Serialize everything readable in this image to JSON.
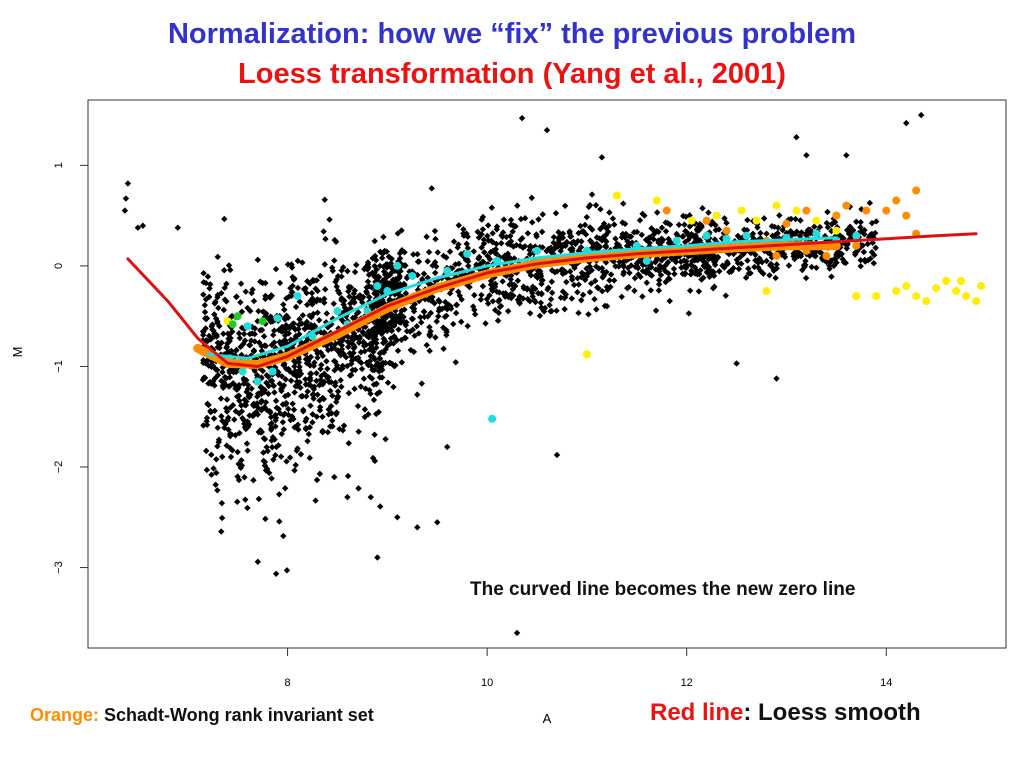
{
  "slide": {
    "title_line1": "Normalization: how we “fix” the previous   problem",
    "title_line2": "Loess transformation (Yang et al., 2001)",
    "annotation": "The curved line becomes the new zero line",
    "legend_orange_key": "Orange:",
    "legend_orange_text": " Schadt-Wong rank invariant set",
    "legend_red_key": "Red line",
    "legend_red_text": ": Loess smooth"
  },
  "colors": {
    "title1": "#3333cc",
    "title2": "#ee1111",
    "points": "#000000",
    "orange": "#ff8c00",
    "red": "#dd1111",
    "cyan": "#22dddd",
    "yellow": "#ffee00",
    "green": "#22cc22"
  },
  "chart_data": {
    "type": "scatter",
    "xlabel": "A",
    "ylabel": "M",
    "xlim": [
      6.0,
      15.2
    ],
    "ylim": [
      -3.8,
      1.65
    ],
    "xticks": [
      8,
      10,
      12,
      14
    ],
    "yticks": [
      -3,
      -2,
      -1,
      0,
      1
    ],
    "grid": false,
    "loess_curve": [
      [
        6.4,
        0.07
      ],
      [
        6.8,
        -0.35
      ],
      [
        7.1,
        -0.72
      ],
      [
        7.4,
        -0.97
      ],
      [
        7.7,
        -1.0
      ],
      [
        8.0,
        -0.9
      ],
      [
        8.5,
        -0.65
      ],
      [
        9.0,
        -0.4
      ],
      [
        9.5,
        -0.22
      ],
      [
        10.0,
        -0.07
      ],
      [
        10.5,
        0.02
      ],
      [
        11.0,
        0.08
      ],
      [
        11.5,
        0.12
      ],
      [
        12.0,
        0.15
      ],
      [
        12.5,
        0.18
      ],
      [
        13.0,
        0.21
      ],
      [
        13.5,
        0.24
      ],
      [
        14.0,
        0.27
      ],
      [
        14.5,
        0.3
      ],
      [
        14.9,
        0.32
      ]
    ],
    "orange_curve": [
      [
        7.1,
        -0.82
      ],
      [
        7.4,
        -0.97
      ],
      [
        7.7,
        -0.98
      ],
      [
        8.0,
        -0.9
      ],
      [
        8.5,
        -0.68
      ],
      [
        9.0,
        -0.42
      ],
      [
        9.5,
        -0.22
      ],
      [
        10.0,
        -0.08
      ],
      [
        10.5,
        0.02
      ],
      [
        11.0,
        0.08
      ],
      [
        11.5,
        0.12
      ],
      [
        12.0,
        0.15
      ],
      [
        12.5,
        0.18
      ],
      [
        13.0,
        0.2
      ],
      [
        13.5,
        0.2
      ]
    ],
    "cyan_curve": [
      [
        7.2,
        -0.88
      ],
      [
        7.6,
        -0.92
      ],
      [
        8.0,
        -0.8
      ],
      [
        8.5,
        -0.52
      ],
      [
        9.0,
        -0.28
      ],
      [
        9.5,
        -0.12
      ],
      [
        10.0,
        0.0
      ],
      [
        10.5,
        0.08
      ],
      [
        11.0,
        0.13
      ],
      [
        11.5,
        0.17
      ],
      [
        12.0,
        0.2
      ],
      [
        12.5,
        0.24
      ],
      [
        13.0,
        0.26
      ],
      [
        13.5,
        0.28
      ]
    ],
    "outliers": [
      [
        6.4,
        0.82
      ],
      [
        6.38,
        0.67
      ],
      [
        6.37,
        0.55
      ],
      [
        6.5,
        0.38
      ],
      [
        6.55,
        0.4
      ],
      [
        6.9,
        0.38
      ],
      [
        10.35,
        1.47
      ],
      [
        10.6,
        1.35
      ],
      [
        11.15,
        1.08
      ],
      [
        13.1,
        1.28
      ],
      [
        13.6,
        1.1
      ],
      [
        14.2,
        1.42
      ],
      [
        14.35,
        1.5
      ],
      [
        13.2,
        1.1
      ],
      [
        9.3,
        -1.28
      ],
      [
        10.7,
        -1.88
      ],
      [
        10.3,
        -3.65
      ],
      [
        12.5,
        -0.97
      ],
      [
        12.9,
        -1.12
      ],
      [
        8.9,
        -2.9
      ],
      [
        8.6,
        -2.3
      ],
      [
        9.1,
        -2.5
      ],
      [
        9.5,
        -2.55
      ],
      [
        9.3,
        -2.6
      ],
      [
        9.6,
        -1.8
      ]
    ],
    "cyan_points": [
      [
        10.05,
        -1.52
      ],
      [
        7.42,
        -0.92
      ],
      [
        7.55,
        -1.05
      ],
      [
        7.7,
        -1.15
      ],
      [
        7.6,
        -0.6
      ],
      [
        7.9,
        -0.52
      ],
      [
        8.25,
        -0.7
      ],
      [
        8.5,
        -0.45
      ],
      [
        8.6,
        -0.58
      ],
      [
        8.9,
        -0.2
      ],
      [
        9.1,
        0.0
      ],
      [
        9.25,
        -0.1
      ],
      [
        9.6,
        -0.05
      ],
      [
        9.8,
        0.12
      ],
      [
        9.9,
        -0.1
      ],
      [
        10.1,
        0.05
      ],
      [
        10.3,
        -0.02
      ],
      [
        10.5,
        0.15
      ],
      [
        10.7,
        0.08
      ],
      [
        11.0,
        0.15
      ],
      [
        11.2,
        0.1
      ],
      [
        11.5,
        0.2
      ],
      [
        11.9,
        0.25
      ],
      [
        12.2,
        0.3
      ],
      [
        12.6,
        0.3
      ],
      [
        13.0,
        0.28
      ],
      [
        13.3,
        0.32
      ],
      [
        13.5,
        0.25
      ],
      [
        13.7,
        0.3
      ],
      [
        8.1,
        -0.3
      ],
      [
        8.8,
        -0.45
      ],
      [
        7.85,
        -1.05
      ],
      [
        9.0,
        -0.25
      ],
      [
        11.6,
        0.05
      ],
      [
        12.4,
        0.27
      ]
    ],
    "yellow_points": [
      [
        7.4,
        -0.55
      ],
      [
        11.0,
        -0.88
      ],
      [
        11.7,
        0.65
      ],
      [
        12.05,
        0.45
      ],
      [
        12.3,
        0.5
      ],
      [
        12.55,
        0.55
      ],
      [
        12.7,
        0.45
      ],
      [
        12.9,
        0.6
      ],
      [
        13.1,
        0.55
      ],
      [
        13.3,
        0.45
      ],
      [
        13.5,
        0.35
      ],
      [
        13.7,
        -0.3
      ],
      [
        13.9,
        -0.3
      ],
      [
        14.1,
        -0.25
      ],
      [
        14.3,
        -0.3
      ],
      [
        14.5,
        -0.22
      ],
      [
        14.7,
        -0.25
      ],
      [
        14.8,
        -0.3
      ],
      [
        14.95,
        -0.2
      ],
      [
        14.6,
        -0.15
      ],
      [
        14.4,
        -0.35
      ],
      [
        14.2,
        -0.2
      ],
      [
        14.9,
        -0.35
      ],
      [
        14.75,
        -0.15
      ],
      [
        11.3,
        0.7
      ],
      [
        12.8,
        -0.25
      ]
    ],
    "orange_points": [
      [
        13.2,
        0.55
      ],
      [
        13.5,
        0.5
      ],
      [
        13.6,
        0.6
      ],
      [
        13.8,
        0.55
      ],
      [
        14.0,
        0.55
      ],
      [
        14.1,
        0.65
      ],
      [
        14.3,
        0.75
      ],
      [
        14.2,
        0.5
      ],
      [
        14.3,
        0.32
      ],
      [
        13.7,
        0.2
      ],
      [
        13.2,
        0.15
      ],
      [
        12.9,
        0.1
      ],
      [
        12.8,
        0.25
      ],
      [
        11.8,
        0.55
      ],
      [
        12.2,
        0.45
      ],
      [
        12.4,
        0.35
      ],
      [
        13.0,
        0.42
      ],
      [
        11.5,
        0.18
      ],
      [
        12.6,
        0.2
      ],
      [
        13.4,
        0.1
      ]
    ],
    "green_points": [
      [
        7.5,
        -0.5
      ],
      [
        7.75,
        -0.55
      ],
      [
        7.45,
        -0.58
      ]
    ]
  }
}
